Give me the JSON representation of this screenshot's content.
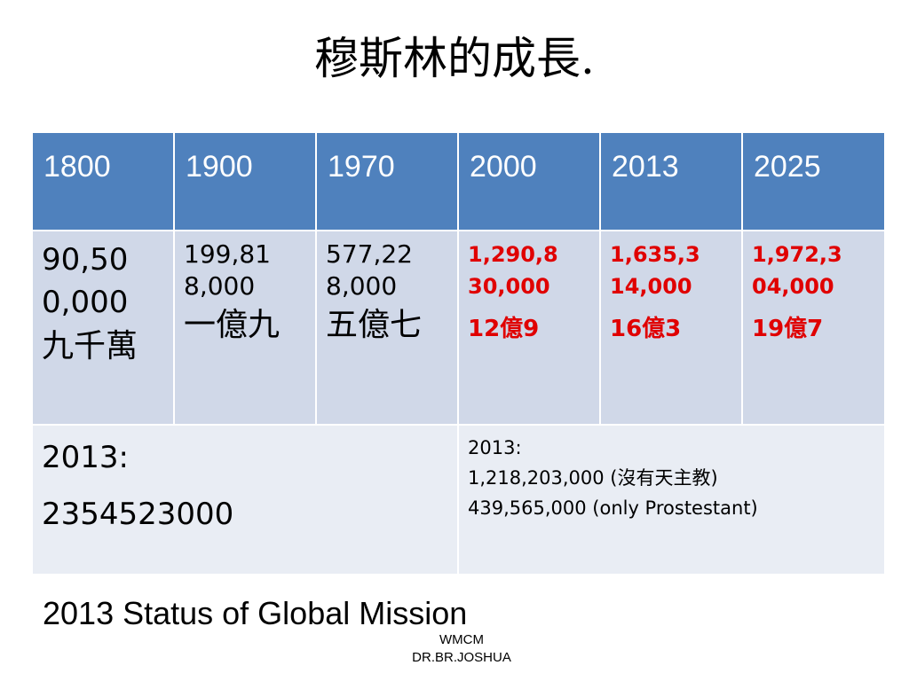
{
  "title": "穆斯林的成長.",
  "table": {
    "headers": [
      "1800",
      "1900",
      "1970",
      "2000",
      "2013",
      "2025"
    ],
    "row1": [
      {
        "number": "90,50\n0,000",
        "cjk": "九千萬"
      },
      {
        "number": "199,81\n8,000",
        "cjk": "一億九"
      },
      {
        "number": "577,22\n8,000",
        "cjk": "五億七"
      },
      {
        "number": "1,290,8\n30,000",
        "cjk": "12億9"
      },
      {
        "number": "1,635,3\n14,000",
        "cjk": "16億3"
      },
      {
        "number": "1,972,3\n04,000",
        "cjk": "19億7"
      }
    ],
    "row2_left": {
      "line1": "2013:",
      "line2": "2354523000"
    },
    "row2_right": {
      "line1": "2013:",
      "line2": "1,218,203,000 (沒有天主教)",
      "line3": "439,565,000 (only Prostestant)"
    }
  },
  "caption": "2013 Status of Global Mission",
  "footer": {
    "line1": "WMCM",
    "line2": "DR.BR.JOSHUA"
  },
  "colors": {
    "header_bg": "#4f81bd",
    "row1_bg": "#d0d8e8",
    "row2_bg": "#e9edf4",
    "highlight": "#e00000"
  }
}
